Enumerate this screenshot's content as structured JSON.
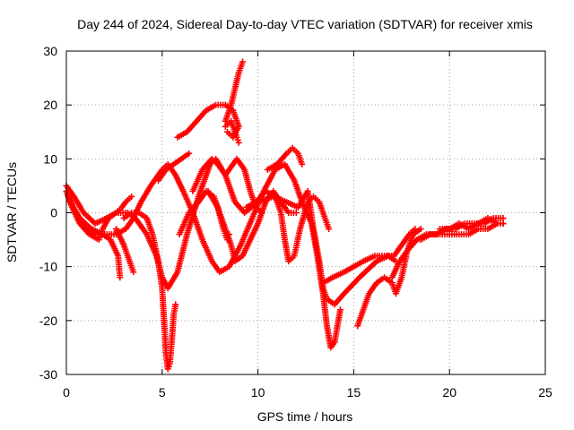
{
  "chart_data": {
    "type": "scatter",
    "title": "Day 244 of 2024, Sidereal Day-to-day VTEC variation (SDTVAR) for receiver xmis",
    "xlabel": "GPS time / hours",
    "ylabel": "SDTVAR / TECUs",
    "xlim": [
      0,
      25
    ],
    "ylim": [
      -30,
      30
    ],
    "xticks": [
      0,
      5,
      10,
      15,
      20,
      25
    ],
    "yticks": [
      -30,
      -20,
      -10,
      0,
      10,
      20,
      30
    ],
    "grid": true,
    "marker": "+",
    "color": "#ff0000",
    "series": [
      {
        "points": [
          [
            0.0,
            4
          ],
          [
            0.3,
            1
          ],
          [
            0.7,
            -2
          ],
          [
            1.2,
            -4
          ],
          [
            1.7,
            -5
          ],
          [
            1.9,
            -3
          ],
          [
            2.2,
            -1
          ],
          [
            2.6,
            0
          ],
          [
            3.2,
            0
          ],
          [
            3.6,
            -1
          ],
          [
            4.2,
            -4
          ],
          [
            4.7,
            -8
          ],
          [
            5.0,
            -12
          ],
          [
            5.3,
            -14
          ],
          [
            5.8,
            -11
          ],
          [
            6.3,
            -4
          ],
          [
            6.9,
            3
          ],
          [
            7.5,
            9
          ],
          [
            7.8,
            10
          ],
          [
            8.3,
            7
          ],
          [
            8.8,
            2
          ],
          [
            9.3,
            0
          ],
          [
            10.0,
            2
          ],
          [
            10.8,
            3
          ],
          [
            11.5,
            2
          ],
          [
            12.1,
            1
          ],
          [
            12.6,
            4
          ],
          [
            12.9,
            -3
          ],
          [
            13.2,
            -9
          ],
          [
            13.4,
            -14
          ],
          [
            13.6,
            -16
          ],
          [
            14.0,
            -17
          ],
          [
            14.5,
            -15
          ],
          [
            15.3,
            -12
          ],
          [
            16.2,
            -9
          ],
          [
            16.8,
            -8
          ],
          [
            17.2,
            -9
          ]
        ]
      },
      {
        "points": [
          [
            0.1,
            3
          ],
          [
            0.5,
            0
          ],
          [
            1.0,
            -3
          ],
          [
            1.5,
            -4
          ],
          [
            2.0,
            -4
          ],
          [
            2.6,
            -4
          ],
          [
            3.1,
            -3
          ],
          [
            3.5,
            -1
          ],
          [
            3.9,
            2
          ],
          [
            4.4,
            5
          ],
          [
            5.0,
            8
          ],
          [
            5.3,
            9
          ],
          [
            5.7,
            7
          ],
          [
            6.1,
            4
          ],
          [
            6.6,
            0
          ],
          [
            7.1,
            -5
          ],
          [
            7.6,
            -9
          ],
          [
            8.0,
            -11
          ],
          [
            8.5,
            -10
          ],
          [
            9.1,
            -6
          ],
          [
            9.7,
            -1
          ],
          [
            10.3,
            4
          ],
          [
            10.9,
            8
          ],
          [
            11.4,
            9
          ],
          [
            11.9,
            6
          ],
          [
            12.3,
            2
          ],
          [
            12.8,
            -2
          ],
          [
            13.1,
            -8
          ],
          [
            13.4,
            -15
          ],
          [
            13.6,
            -21
          ],
          [
            13.8,
            -25
          ],
          [
            14.0,
            -24
          ],
          [
            14.3,
            -18
          ]
        ]
      },
      {
        "points": [
          [
            0.2,
            2
          ],
          [
            0.7,
            -1
          ],
          [
            1.3,
            -3
          ],
          [
            1.9,
            -4
          ],
          [
            2.3,
            -5
          ],
          [
            2.7,
            -8
          ],
          [
            2.8,
            -12
          ]
        ]
      },
      {
        "points": [
          [
            0.0,
            5
          ],
          [
            0.4,
            3
          ],
          [
            0.9,
            0
          ],
          [
            1.5,
            -2
          ],
          [
            2.1,
            -1
          ],
          [
            2.6,
            0
          ],
          [
            2.9,
            1
          ],
          [
            3.1,
            2
          ],
          [
            3.4,
            3
          ]
        ]
      },
      {
        "points": [
          [
            2.6,
            -3
          ],
          [
            3.0,
            -6
          ],
          [
            3.3,
            -9
          ],
          [
            3.5,
            -11
          ]
        ]
      },
      {
        "points": [
          [
            3.0,
            -1
          ],
          [
            3.4,
            0
          ],
          [
            3.8,
            0
          ],
          [
            4.2,
            -1
          ],
          [
            4.5,
            -4
          ],
          [
            4.8,
            -9
          ],
          [
            5.0,
            -14
          ],
          [
            5.1,
            -20
          ],
          [
            5.2,
            -26
          ],
          [
            5.3,
            -29
          ],
          [
            5.4,
            -28
          ],
          [
            5.5,
            -24
          ],
          [
            5.6,
            -19
          ],
          [
            5.7,
            -17
          ]
        ]
      },
      {
        "points": [
          [
            4.8,
            6
          ],
          [
            5.2,
            8
          ],
          [
            5.6,
            9
          ],
          [
            6.0,
            10
          ],
          [
            6.4,
            11
          ]
        ]
      },
      {
        "points": [
          [
            5.8,
            14
          ],
          [
            6.3,
            15
          ],
          [
            6.8,
            17
          ],
          [
            7.3,
            19
          ],
          [
            7.8,
            20
          ],
          [
            8.3,
            20
          ],
          [
            8.7,
            19
          ],
          [
            9.0,
            16
          ],
          [
            8.7,
            14
          ],
          [
            8.4,
            15
          ]
        ]
      },
      {
        "points": [
          [
            8.3,
            17
          ],
          [
            8.6,
            20
          ],
          [
            8.8,
            23
          ],
          [
            9.0,
            26
          ],
          [
            9.2,
            28
          ]
        ]
      },
      {
        "points": [
          [
            8.3,
            16
          ],
          [
            8.6,
            17
          ],
          [
            8.9,
            14
          ],
          [
            9.0,
            13
          ]
        ]
      },
      {
        "points": [
          [
            6.6,
            4
          ],
          [
            7.1,
            8
          ],
          [
            7.6,
            10
          ],
          [
            7.9,
            9
          ],
          [
            8.3,
            7
          ],
          [
            8.7,
            9
          ],
          [
            8.9,
            10
          ],
          [
            9.3,
            8
          ],
          [
            9.6,
            4
          ],
          [
            9.9,
            1
          ],
          [
            10.2,
            0
          ]
        ]
      },
      {
        "points": [
          [
            7.4,
            4
          ],
          [
            7.9,
            1
          ],
          [
            8.2,
            -3
          ],
          [
            8.4,
            -5
          ],
          [
            8.5,
            -4
          ]
        ]
      },
      {
        "points": [
          [
            5.9,
            -4
          ],
          [
            6.4,
            0
          ],
          [
            6.9,
            2
          ],
          [
            7.3,
            4
          ],
          [
            7.7,
            3
          ],
          [
            8.0,
            0
          ],
          [
            8.3,
            -3
          ],
          [
            8.6,
            -6
          ],
          [
            8.8,
            -9
          ],
          [
            9.2,
            -8
          ],
          [
            9.6,
            -5
          ],
          [
            10.0,
            -2
          ],
          [
            10.4,
            2
          ],
          [
            10.8,
            4
          ],
          [
            11.2,
            2
          ],
          [
            11.6,
            0
          ],
          [
            12.0,
            0
          ]
        ]
      },
      {
        "points": [
          [
            10.5,
            8
          ],
          [
            11.0,
            9
          ],
          [
            11.5,
            11
          ],
          [
            11.8,
            12
          ],
          [
            12.1,
            11
          ],
          [
            12.3,
            9
          ]
        ]
      },
      {
        "points": [
          [
            9.4,
            1
          ],
          [
            9.9,
            2
          ],
          [
            10.4,
            4
          ],
          [
            10.9,
            3
          ],
          [
            11.2,
            0
          ],
          [
            11.4,
            -5
          ],
          [
            11.6,
            -9
          ],
          [
            11.9,
            -8
          ],
          [
            12.2,
            -3
          ],
          [
            12.6,
            2
          ],
          [
            12.9,
            3
          ],
          [
            13.2,
            2
          ],
          [
            13.5,
            -1
          ],
          [
            13.7,
            -3
          ]
        ]
      },
      {
        "points": [
          [
            13.4,
            -13
          ],
          [
            13.9,
            -12
          ],
          [
            14.5,
            -11
          ],
          [
            15.0,
            -10
          ],
          [
            15.5,
            -9
          ],
          [
            16.1,
            -8
          ],
          [
            16.6,
            -8
          ],
          [
            17.1,
            -8
          ],
          [
            17.5,
            -6
          ],
          [
            17.9,
            -4
          ],
          [
            18.2,
            -3
          ]
        ]
      },
      {
        "points": [
          [
            15.2,
            -21
          ],
          [
            15.5,
            -18
          ],
          [
            15.8,
            -15
          ],
          [
            16.2,
            -13
          ],
          [
            16.6,
            -12
          ],
          [
            17.0,
            -13
          ],
          [
            17.2,
            -15
          ],
          [
            17.5,
            -12
          ],
          [
            17.8,
            -7
          ],
          [
            18.1,
            -4
          ],
          [
            18.5,
            -3
          ]
        ]
      },
      {
        "points": [
          [
            17.0,
            -12
          ],
          [
            17.4,
            -9
          ],
          [
            17.8,
            -7
          ],
          [
            18.3,
            -5
          ],
          [
            18.8,
            -4
          ],
          [
            19.3,
            -4
          ],
          [
            19.8,
            -3
          ],
          [
            20.3,
            -3
          ],
          [
            20.8,
            -2
          ],
          [
            21.3,
            -2
          ],
          [
            21.8,
            -2
          ],
          [
            22.3,
            -1
          ],
          [
            22.8,
            -1
          ]
        ]
      },
      {
        "points": [
          [
            18.5,
            -5
          ],
          [
            19.0,
            -4
          ],
          [
            19.5,
            -4
          ],
          [
            20.0,
            -4
          ],
          [
            20.5,
            -4
          ],
          [
            21.0,
            -4
          ],
          [
            21.5,
            -3
          ],
          [
            22.0,
            -3
          ],
          [
            22.5,
            -2
          ],
          [
            22.8,
            -2
          ]
        ]
      },
      {
        "points": [
          [
            19.5,
            -3
          ],
          [
            20.0,
            -3
          ],
          [
            20.5,
            -2
          ],
          [
            21.0,
            -3
          ],
          [
            21.5,
            -2
          ],
          [
            22.0,
            -1
          ],
          [
            22.5,
            -2
          ],
          [
            22.8,
            -2
          ]
        ]
      }
    ]
  }
}
